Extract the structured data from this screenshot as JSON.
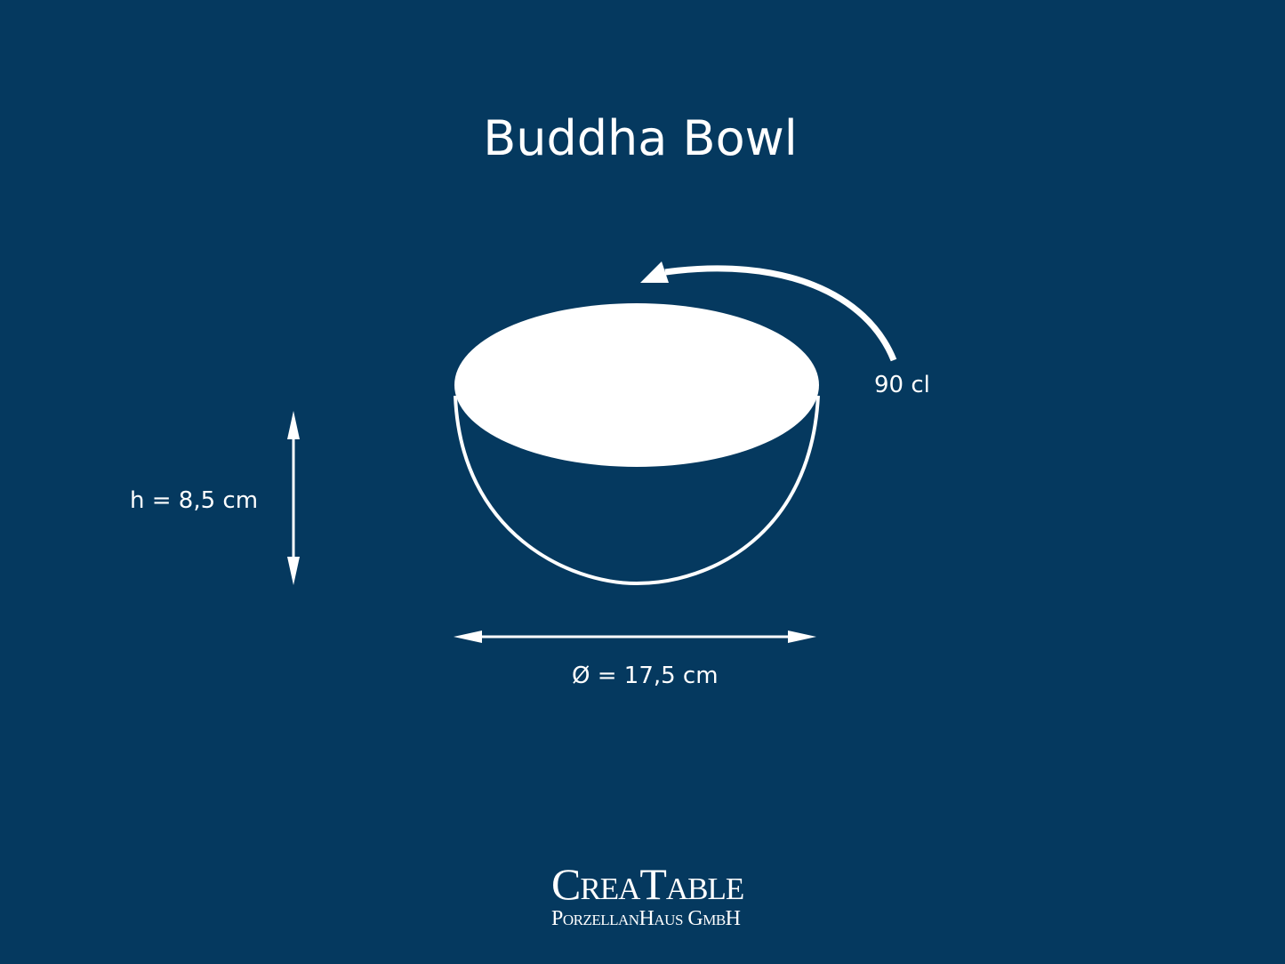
{
  "title": "Buddha Bowl",
  "capacity": "90 cl",
  "height": "h = 8,5 cm",
  "diameter": "Ø = 17,5 cm",
  "logo": {
    "name": "CreaTable",
    "subtitle": "PorzellanHaus GmbH"
  },
  "colors": {
    "background": "#05395f",
    "foreground": "#ffffff"
  }
}
